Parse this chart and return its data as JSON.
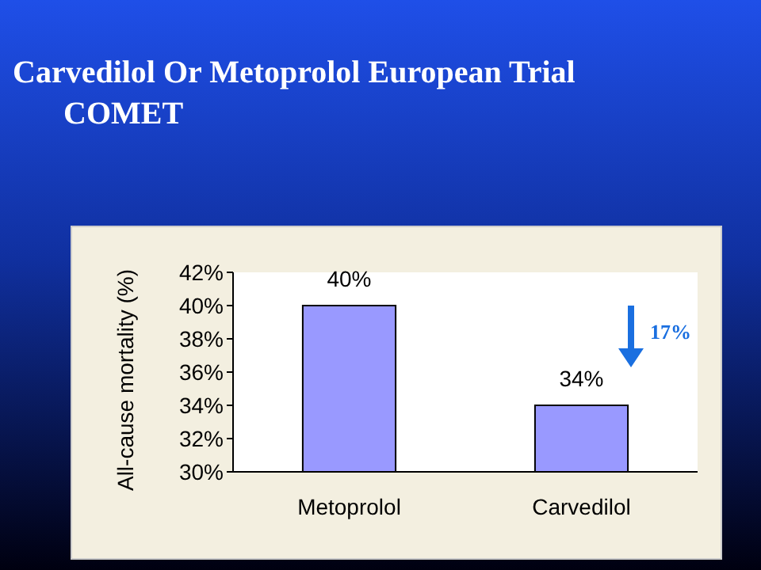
{
  "chart_data": {
    "type": "bar",
    "title": "Carvedilol Or Metoprolol European Trial",
    "subtitle": "COMET",
    "ylabel": "All-cause mortality (%)",
    "categories": [
      "Metoprolol",
      "Carvedilol"
    ],
    "values": [
      40,
      34
    ],
    "value_labels": [
      "40%",
      "34%"
    ],
    "color": "#9999ff",
    "ylim": [
      30,
      42
    ],
    "yticks": [
      {
        "value": 30,
        "label": "30%"
      },
      {
        "value": 32,
        "label": "32%"
      },
      {
        "value": 34,
        "label": "34%"
      },
      {
        "value": 36,
        "label": "36%"
      },
      {
        "value": 38,
        "label": "38%"
      },
      {
        "value": 40,
        "label": "40%"
      },
      {
        "value": 42,
        "label": "42%"
      }
    ],
    "annotations": [
      "17%"
    ],
    "grid": false
  }
}
